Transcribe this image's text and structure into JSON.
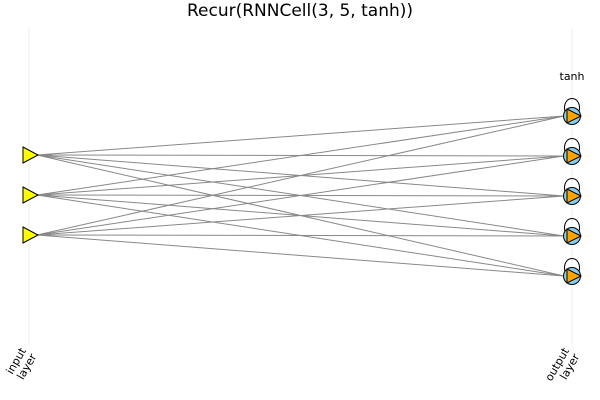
{
  "title": "Recur(RNNCell(3, 5, tanh))",
  "activation_label": "tanh",
  "layers": [
    {
      "label_line1": "input",
      "label_line2": "layer",
      "node_count": 3,
      "node_shape": "triangle",
      "node_color": "#ffff00"
    },
    {
      "label_line1": "output",
      "label_line2": "layer",
      "node_count": 5,
      "node_shape": "recurrent-circle-with-triangle",
      "node_color": "#87ceeb",
      "marker_color": "#ffa500",
      "recurrent": true
    }
  ],
  "connections": "fully-connected",
  "colors": {
    "edge": "#888888",
    "guide": "#eeeeee",
    "input_node": "#ffff00",
    "output_circle": "#87ceeb",
    "output_marker": "#ffa500"
  }
}
